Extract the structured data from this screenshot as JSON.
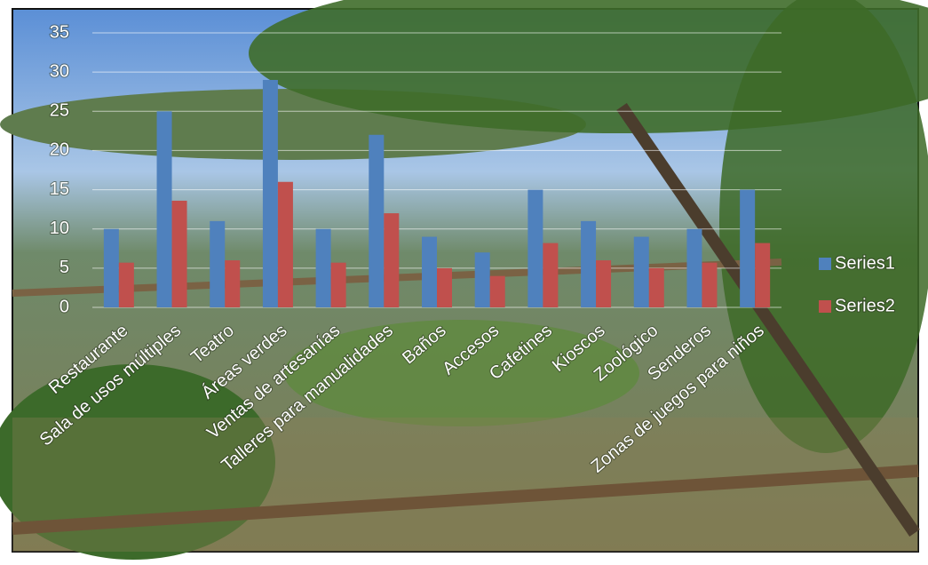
{
  "chart_data": {
    "type": "bar",
    "categories": [
      "Restaurante",
      "Sala de usos múltiples",
      "Teatro",
      "Áreas verdes",
      "Ventas de artesanías",
      "Talleres para manualidades",
      "Baños",
      "Accesos",
      "Cafetines",
      "Kioscos",
      "Zoológico",
      "Senderos",
      "Zonas de juegos para niños"
    ],
    "series": [
      {
        "name": "Series1",
        "color": "#4f81bd",
        "values": [
          10,
          25,
          11,
          29,
          10,
          22,
          9,
          7,
          15,
          11,
          9,
          10,
          15
        ]
      },
      {
        "name": "Series2",
        "color": "#c0504d",
        "values": [
          5.7,
          13.6,
          6,
          16,
          5.7,
          12,
          5,
          4,
          8.2,
          6,
          5,
          5.7,
          8.2
        ]
      }
    ],
    "ylim": [
      0,
      35
    ],
    "yticks": [
      0,
      5,
      10,
      15,
      20,
      25,
      30,
      35
    ],
    "grid": true,
    "legend": "right"
  }
}
